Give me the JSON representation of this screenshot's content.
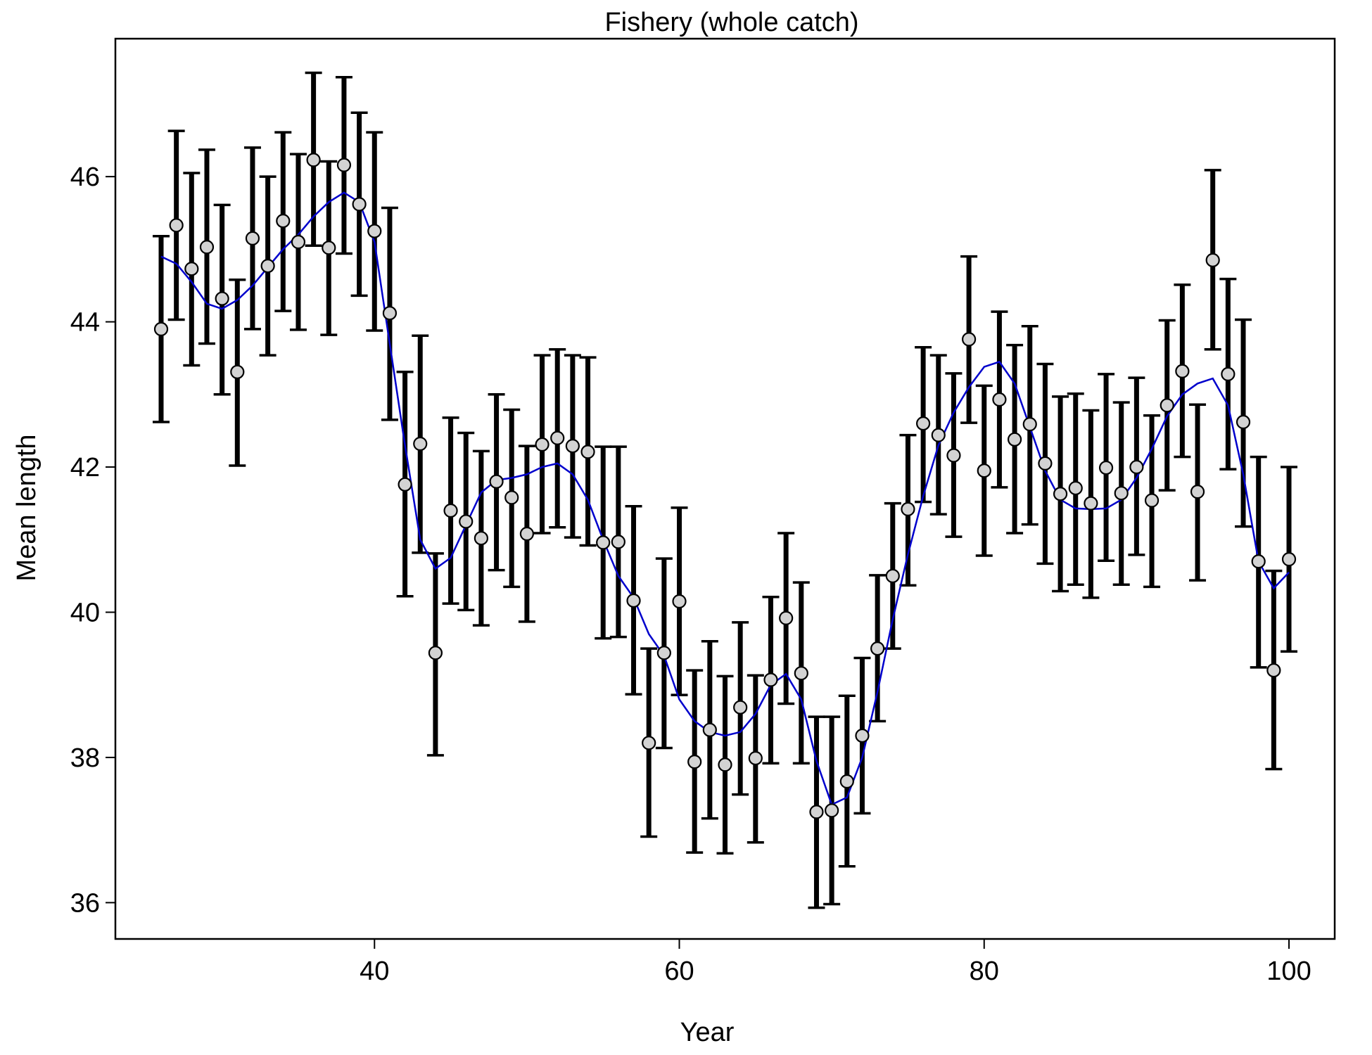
{
  "chart_data": {
    "type": "scatter",
    "title": "Fishery (whole catch)",
    "xlabel": "Year",
    "ylabel": "Mean length",
    "xlim": [
      23,
      103
    ],
    "ylim": [
      35.5,
      47.9
    ],
    "xticks": [
      40,
      60,
      80,
      100
    ],
    "yticks": [
      36,
      38,
      40,
      42,
      44,
      46
    ],
    "grid": false,
    "legend": "none",
    "colors": {
      "observed_fill": "#d3d3d3",
      "observed_stroke": "#000000",
      "error_bar": "#000000",
      "expected_line": "#0000cc"
    },
    "series": [
      {
        "kind": "points_with_error_bars",
        "x": [
          26,
          27,
          28,
          29,
          30,
          31,
          32,
          33,
          34,
          35,
          36,
          37,
          38,
          39,
          40,
          41,
          42,
          43,
          44,
          45,
          46,
          47,
          48,
          49,
          50,
          51,
          52,
          53,
          54,
          55,
          56,
          57,
          58,
          59,
          60,
          61,
          62,
          63,
          64,
          65,
          66,
          67,
          68,
          69,
          70,
          71,
          72,
          73,
          74,
          75,
          76,
          77,
          78,
          79,
          80,
          81,
          82,
          83,
          84,
          85,
          86,
          87,
          88,
          89,
          90,
          91,
          92,
          93,
          94,
          95,
          96,
          97,
          98,
          99,
          100
        ],
        "y": [
          43.9,
          45.33,
          44.73,
          45.03,
          44.32,
          43.31,
          45.15,
          44.77,
          45.39,
          45.1,
          46.23,
          45.02,
          46.16,
          45.62,
          45.25,
          44.12,
          41.76,
          42.32,
          39.44,
          41.4,
          41.25,
          41.02,
          41.8,
          41.58,
          41.08,
          42.31,
          42.4,
          42.29,
          42.21,
          40.96,
          40.97,
          40.16,
          38.2,
          39.44,
          40.15,
          37.94,
          38.38,
          37.9,
          38.69,
          37.99,
          39.07,
          39.92,
          39.16,
          37.25,
          37.27,
          37.67,
          38.3,
          39.5,
          40.5,
          41.42,
          42.6,
          42.44,
          42.16,
          43.76,
          41.95,
          42.93,
          42.38,
          42.59,
          42.05,
          41.63,
          41.71,
          41.5,
          41.99,
          41.64,
          42.0,
          41.54,
          42.85,
          43.32,
          41.66,
          44.85,
          43.28,
          42.62,
          40.7,
          39.2,
          40.73
        ],
        "err_low": [
          42.62,
          44.03,
          43.4,
          43.7,
          43.0,
          42.02,
          43.9,
          43.54,
          44.15,
          43.89,
          45.05,
          43.82,
          44.94,
          44.36,
          43.88,
          42.65,
          40.22,
          40.82,
          38.03,
          40.12,
          40.03,
          39.82,
          40.58,
          40.35,
          39.87,
          41.09,
          41.17,
          41.03,
          40.92,
          39.64,
          39.66,
          38.87,
          36.91,
          38.13,
          38.86,
          36.69,
          37.16,
          36.68,
          37.49,
          36.83,
          37.92,
          38.74,
          37.92,
          35.93,
          35.98,
          36.5,
          37.23,
          38.5,
          39.5,
          40.37,
          41.52,
          41.35,
          41.04,
          42.61,
          40.78,
          41.72,
          41.09,
          41.21,
          40.67,
          40.29,
          40.38,
          40.2,
          40.71,
          40.38,
          40.79,
          40.35,
          41.68,
          42.14,
          40.44,
          43.62,
          41.97,
          41.18,
          39.24,
          37.84,
          39.46
        ],
        "err_high": [
          45.18,
          46.63,
          46.05,
          46.37,
          45.61,
          44.58,
          46.4,
          46.0,
          46.61,
          46.31,
          47.43,
          46.21,
          47.37,
          46.88,
          46.61,
          45.57,
          43.31,
          43.81,
          40.81,
          42.68,
          42.47,
          42.22,
          43.0,
          42.79,
          42.29,
          43.54,
          43.62,
          43.54,
          43.51,
          42.28,
          42.28,
          41.46,
          39.5,
          40.74,
          41.44,
          39.2,
          39.6,
          39.12,
          39.86,
          39.13,
          40.21,
          41.09,
          40.41,
          38.56,
          38.56,
          38.85,
          39.37,
          40.51,
          41.5,
          42.44,
          43.65,
          43.54,
          43.29,
          44.9,
          43.12,
          44.14,
          43.68,
          43.94,
          43.42,
          42.97,
          43.01,
          42.78,
          43.28,
          42.89,
          43.23,
          42.71,
          44.02,
          44.51,
          42.86,
          46.09,
          44.59,
          44.03,
          42.14,
          40.57,
          42.0
        ]
      },
      {
        "kind": "line",
        "x": [
          26,
          27,
          28,
          29,
          30,
          31,
          32,
          33,
          34,
          35,
          36,
          37,
          38,
          39,
          40,
          41,
          42,
          43,
          44,
          45,
          46,
          47,
          48,
          49,
          50,
          51,
          52,
          53,
          54,
          55,
          56,
          57,
          58,
          59,
          60,
          61,
          62,
          63,
          64,
          65,
          66,
          67,
          68,
          69,
          70,
          71,
          72,
          73,
          74,
          75,
          76,
          77,
          78,
          79,
          80,
          81,
          82,
          83,
          84,
          85,
          86,
          87,
          88,
          89,
          90,
          91,
          92,
          93,
          94,
          95,
          96,
          97,
          98,
          99,
          100
        ],
        "y": [
          44.9,
          44.8,
          44.55,
          44.25,
          44.18,
          44.3,
          44.5,
          44.75,
          45.0,
          45.2,
          45.45,
          45.65,
          45.78,
          45.65,
          45.1,
          43.7,
          42.3,
          41.0,
          40.6,
          40.75,
          41.2,
          41.65,
          41.82,
          41.85,
          41.9,
          42.0,
          42.05,
          41.9,
          41.55,
          41.0,
          40.5,
          40.2,
          39.7,
          39.4,
          38.8,
          38.5,
          38.35,
          38.3,
          38.35,
          38.6,
          39.0,
          39.15,
          38.8,
          37.95,
          37.35,
          37.45,
          38.0,
          38.9,
          39.9,
          40.8,
          41.6,
          42.3,
          42.75,
          43.1,
          43.38,
          43.45,
          43.15,
          42.55,
          41.95,
          41.55,
          41.43,
          41.42,
          41.43,
          41.55,
          41.85,
          42.25,
          42.7,
          43.0,
          43.15,
          43.22,
          42.85,
          41.9,
          40.7,
          40.33,
          40.55
        ]
      }
    ]
  }
}
